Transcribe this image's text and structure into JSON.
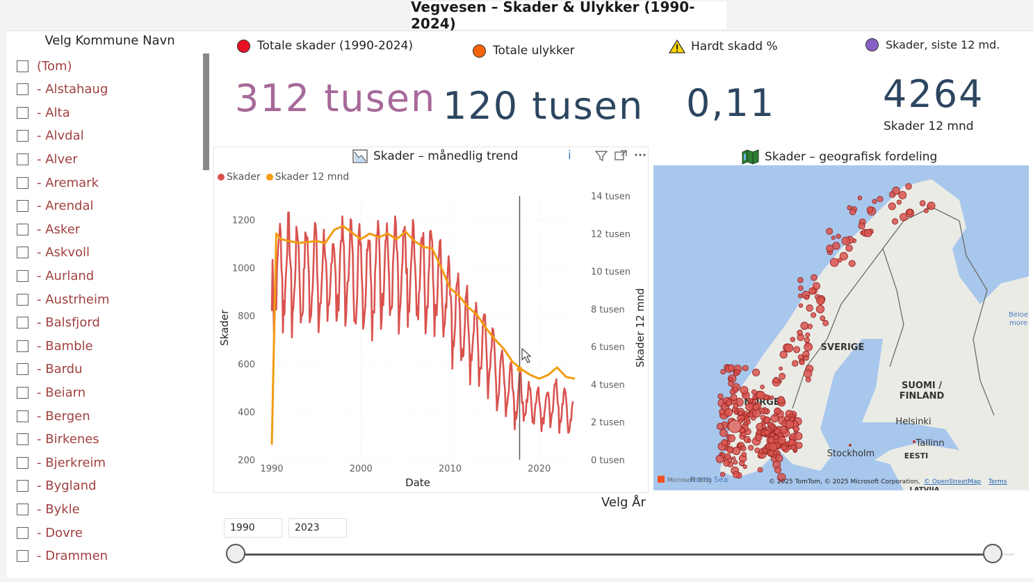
{
  "title": "Vegvesen – Skader & Ulykker (1990-2024)",
  "slicer": {
    "header": "Velg Kommune Navn",
    "items": [
      "(Tom)",
      "- Alstahaug",
      "- Alta",
      "- Alvdal",
      "- Alver",
      "- Aremark",
      "- Arendal",
      "- Asker",
      "- Askvoll",
      "- Aurland",
      "- Austrheim",
      "- Balsfjord",
      "- Bamble",
      "- Bardu",
      "- Beiarn",
      "- Bergen",
      "- Birkenes",
      "- Bjerkreim",
      "- Bygland",
      "- Bykle",
      "- Dovre",
      "- Drammen"
    ]
  },
  "kpis": [
    {
      "label": "Totale skader (1990-2024)",
      "value": "312 tusen",
      "dot_color": "#e81123",
      "value_color": "#a66999"
    },
    {
      "label": "Totale ulykker",
      "value": "120 tusen",
      "dot_color": "#f7630c",
      "value_color": "#2d4660"
    },
    {
      "label": "Hardt skadd %",
      "value": "0,11",
      "icon": "warning-triangle-icon",
      "value_color": "#2d4660"
    },
    {
      "label": "Skader, siste 12 md.",
      "value": "4264",
      "sub": "Skader 12 mnd",
      "dot_color": "#8661c5",
      "value_color": "#2d4660"
    }
  ],
  "trend": {
    "title": "Skader – månedlig trend",
    "info": "i",
    "legend": [
      "Skader",
      "Skader 12 mnd"
    ],
    "colors": {
      "skader": "#d9534f",
      "skader12": "#f29c11"
    },
    "icons": [
      "line-chart-icon",
      "filter-icon",
      "focus-mode-icon",
      "more-options-icon"
    ]
  },
  "chart_data": {
    "type": "line",
    "title": "Skader – månedlig trend",
    "xlabel": "Date",
    "ylabel": "Skader",
    "y2label": "Skader 12 mnd",
    "xlim": [
      1990,
      2024
    ],
    "ylim": [
      200,
      1300
    ],
    "y2lim": [
      0,
      14000
    ],
    "x_ticks": [
      "1990",
      "2000",
      "2010",
      "2020"
    ],
    "y_ticks": [
      "200",
      "400",
      "600",
      "800",
      "1000",
      "1200"
    ],
    "y2_ticks": [
      "0 tusen",
      "2 tusen",
      "4 tusen",
      "6 tusen",
      "8 tusen",
      "10 tusen",
      "12 tusen",
      "14 tusen"
    ],
    "cursor_x": 2017.8,
    "series": [
      {
        "name": "Skader",
        "axis": "left",
        "values_annual_avg": [
          [
            1990,
            990
          ],
          [
            1991,
            1010
          ],
          [
            1992,
            990
          ],
          [
            1993,
            980
          ],
          [
            1994,
            1000
          ],
          [
            1995,
            970
          ],
          [
            1996,
            960
          ],
          [
            1997,
            995
          ],
          [
            1998,
            1010
          ],
          [
            1999,
            980
          ],
          [
            2000,
            990
          ],
          [
            2001,
            985
          ],
          [
            2002,
            1010
          ],
          [
            2003,
            1000
          ],
          [
            2004,
            975
          ],
          [
            2005,
            990
          ],
          [
            2006,
            985
          ],
          [
            2007,
            980
          ],
          [
            2008,
            960
          ],
          [
            2009,
            910
          ],
          [
            2010,
            830
          ],
          [
            2011,
            760
          ],
          [
            2012,
            720
          ],
          [
            2013,
            690
          ],
          [
            2014,
            640
          ],
          [
            2015,
            560
          ],
          [
            2016,
            520
          ],
          [
            2017,
            470
          ],
          [
            2018,
            445
          ],
          [
            2019,
            440
          ],
          [
            2020,
            420
          ],
          [
            2021,
            450
          ],
          [
            2022,
            430
          ],
          [
            2023,
            400
          ]
        ]
      },
      {
        "name": "Skader 12 mnd",
        "axis": "right",
        "points": [
          [
            1990.0,
            800
          ],
          [
            1990.5,
            12000
          ],
          [
            1991,
            11700
          ],
          [
            1993,
            11500
          ],
          [
            1995,
            11600
          ],
          [
            1996,
            11500
          ],
          [
            1997,
            12200
          ],
          [
            1998,
            12400
          ],
          [
            2000,
            11700
          ],
          [
            2001,
            12000
          ],
          [
            2002,
            11800
          ],
          [
            2003,
            12000
          ],
          [
            2004,
            11700
          ],
          [
            2005,
            12100
          ],
          [
            2006,
            11600
          ],
          [
            2007,
            11300
          ],
          [
            2008,
            11200
          ],
          [
            2009,
            10200
          ],
          [
            2010,
            9100
          ],
          [
            2011,
            8700
          ],
          [
            2012,
            8100
          ],
          [
            2013,
            7700
          ],
          [
            2014,
            7000
          ],
          [
            2015,
            6400
          ],
          [
            2016,
            5900
          ],
          [
            2017,
            5200
          ],
          [
            2018,
            4800
          ],
          [
            2019,
            4500
          ],
          [
            2020,
            4300
          ],
          [
            2021,
            4500
          ],
          [
            2022,
            4900
          ],
          [
            2023,
            4400
          ],
          [
            2024,
            4300
          ]
        ]
      }
    ]
  },
  "map": {
    "title": "Skader – geografisk fordeling",
    "labels": [
      "SVERIGE",
      "SUOMI /",
      "FINLAND",
      "NORGE",
      "Helsinki",
      "Stockholm",
      "Tallinn",
      "EESTI",
      "Beloe",
      "more",
      "LATVIJA",
      "North Sea"
    ],
    "attribution": "© 2025 TomTom, © 2025 Microsoft Corporation,",
    "osm": "© OpenStreetMap",
    "terms": "Terms",
    "brand": "Microsoft Bing"
  },
  "year": {
    "label": "Velg År",
    "from": "1990",
    "to": "2023"
  }
}
